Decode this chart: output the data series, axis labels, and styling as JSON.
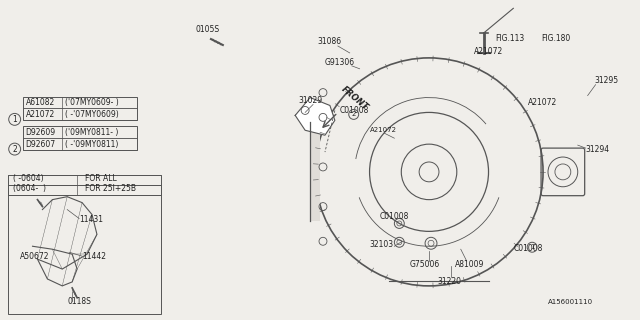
{
  "bg_color": "#f0eeea",
  "line_color": "#555555",
  "text_color": "#222222",
  "diagram_id": "A156001110",
  "front_arrow": "FRONT",
  "legend_box1": [
    [
      "A21072",
      "( -'07MY0609)"
    ],
    [
      "A61082",
      "('07MY0609- )"
    ]
  ],
  "legend_box2": [
    [
      "D92607",
      "( -'09MY0811)"
    ],
    [
      "D92609",
      "('09MY0811- )"
    ]
  ],
  "table_rows": [
    [
      "( -0604)",
      "FOR ALL"
    ],
    [
      "(0604-  )",
      "FOR 25I+25B"
    ]
  ],
  "sub_labels": [
    "11431",
    "A50672",
    "11442",
    "0118S"
  ]
}
